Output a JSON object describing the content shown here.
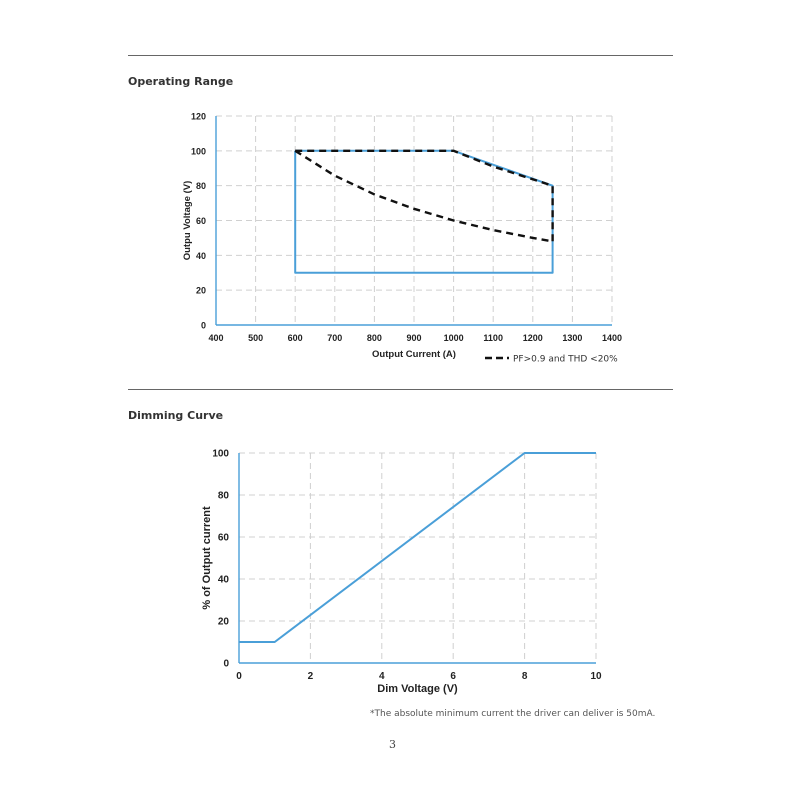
{
  "page": {
    "section1_title": "Operating Range",
    "section2_title": "Dimming Curve",
    "footnote": "*The absolute minimum current the driver can deliver is 50mA.",
    "page_number": "3"
  },
  "colors": {
    "series_blue": "#4a9fd8",
    "dashed": "#111111",
    "grid": "#d0d0d0",
    "axis": "#4a9fd8"
  },
  "chart_data": [
    {
      "type": "line",
      "title": "Operating Range",
      "xlabel": "Output Current (A)",
      "ylabel": "Outpu Voltage (V)",
      "xlim": [
        400,
        1400
      ],
      "ylim": [
        0,
        120
      ],
      "xticks": [
        400,
        500,
        600,
        700,
        800,
        900,
        1000,
        1100,
        1200,
        1300,
        1400
      ],
      "yticks": [
        0,
        20,
        40,
        60,
        80,
        100,
        120
      ],
      "grid": true,
      "legend_position": "bottom-right",
      "series": [
        {
          "style": "solid",
          "color": "#4a9fd8",
          "points": [
            [
              600,
              100
            ],
            [
              1000,
              100
            ],
            [
              1250,
              80
            ],
            [
              1250,
              30
            ],
            [
              600,
              30
            ],
            [
              600,
              100
            ]
          ]
        },
        {
          "name": "PF>0.9 and THD <20%",
          "style": "dashed",
          "color": "#111111",
          "points": [
            [
              600,
              100
            ],
            [
              1000,
              100
            ],
            [
              1100,
              91
            ],
            [
              1250,
              80
            ],
            [
              1250,
              48
            ]
          ]
        },
        {
          "name": "PF>0.9 and THD <20%",
          "style": "dashed",
          "color": "#111111",
          "points": [
            [
              600,
              100
            ],
            [
              700,
              85.7
            ],
            [
              800,
              75
            ],
            [
              900,
              66.7
            ],
            [
              1000,
              60
            ],
            [
              1100,
              54.5
            ],
            [
              1200,
              50
            ],
            [
              1250,
              48
            ]
          ]
        }
      ],
      "legend": "PF>0.9 and THD <20%"
    },
    {
      "type": "line",
      "title": "Dimming Curve",
      "xlabel": "Dim Voltage (V)",
      "ylabel": "% of Output current",
      "xlim": [
        0,
        10
      ],
      "ylim": [
        0,
        100
      ],
      "xticks": [
        0,
        2,
        4,
        6,
        8,
        10
      ],
      "yticks": [
        0,
        20,
        40,
        60,
        80,
        100
      ],
      "grid": true,
      "series": [
        {
          "style": "solid",
          "color": "#4a9fd8",
          "points": [
            [
              0,
              10
            ],
            [
              1,
              10
            ],
            [
              8,
              100
            ],
            [
              10,
              100
            ]
          ]
        }
      ]
    }
  ]
}
